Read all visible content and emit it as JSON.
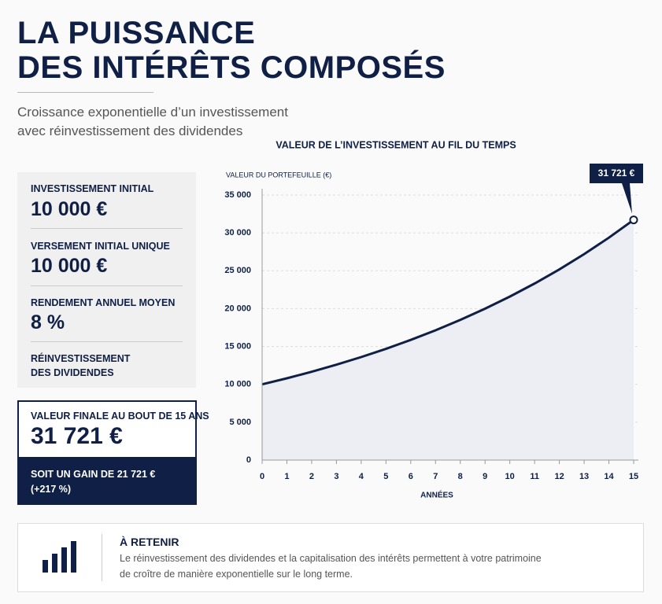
{
  "header": {
    "title_lines": [
      "LA PUISSANCE",
      "DES INTÉRÊTS COMPOSÉS"
    ],
    "subtitle_lines": [
      "Croissance exponentielle d’un investissement",
      "avec réinvestissement des dividendes"
    ]
  },
  "stats": [
    {
      "label": "INVESTISSEMENT INITIAL",
      "value": "10 000 €"
    },
    {
      "label": "VERSEMENT INITIAL UNIQUE",
      "value": "10 000 €"
    },
    {
      "label": "RENDEMENT ANNUEL MOYEN",
      "value": "8 %"
    },
    {
      "label_lines": [
        "RÉINVESTISSEMENT",
        "DES DIVIDENDES"
      ]
    }
  ],
  "result": {
    "label": "VALEUR FINALE AU BOUT DE 15 ANS",
    "value": "31 721 €",
    "gain_lines": [
      "SOIT UN GAIN DE 21 721 €",
      "(+217 %)"
    ]
  },
  "takeaway": {
    "title": "À RETENIR",
    "text_lines": [
      "Le réinvestissement des dividendes et la capitalisation des intérêts permettent à votre patrimoine",
      "de croître de manière exponentielle sur le long terme."
    ]
  },
  "chart_data": {
    "type": "line",
    "title": "VALEUR DE L’INVESTISSEMENT AU FIL DU TEMPS",
    "y_label": "VALEUR DU PORTEFEUILLE (€)",
    "x_label": "ANNÉES",
    "x": [
      0,
      1,
      2,
      3,
      4,
      5,
      6,
      7,
      8,
      9,
      10,
      11,
      12,
      13,
      14,
      15
    ],
    "values": [
      10000,
      10800,
      11664,
      12597,
      13605,
      14693,
      15869,
      17138,
      18509,
      19990,
      21589,
      23316,
      25182,
      27196,
      29372,
      31721
    ],
    "color": "#0f1f45",
    "area_color": "#eceef4",
    "xlim": [
      0,
      15
    ],
    "xticks": [
      0,
      1,
      2,
      3,
      4,
      5,
      6,
      7,
      8,
      9,
      10,
      11,
      12,
      13,
      14,
      15
    ],
    "ylim": [
      0,
      35000
    ],
    "yticks": [
      0,
      {
        "value": 5000,
        "label": "5 000"
      },
      {
        "value": 10000,
        "label": "10 000"
      },
      {
        "value": 15000,
        "label": "15 000"
      },
      {
        "value": 20000,
        "label": "20 000"
      },
      {
        "value": 25000,
        "label": "25 000"
      },
      {
        "value": 30000,
        "label": "30 000"
      },
      {
        "value": 35000,
        "label": "35 000"
      }
    ],
    "grid": true,
    "annotation": "31 721 €"
  }
}
